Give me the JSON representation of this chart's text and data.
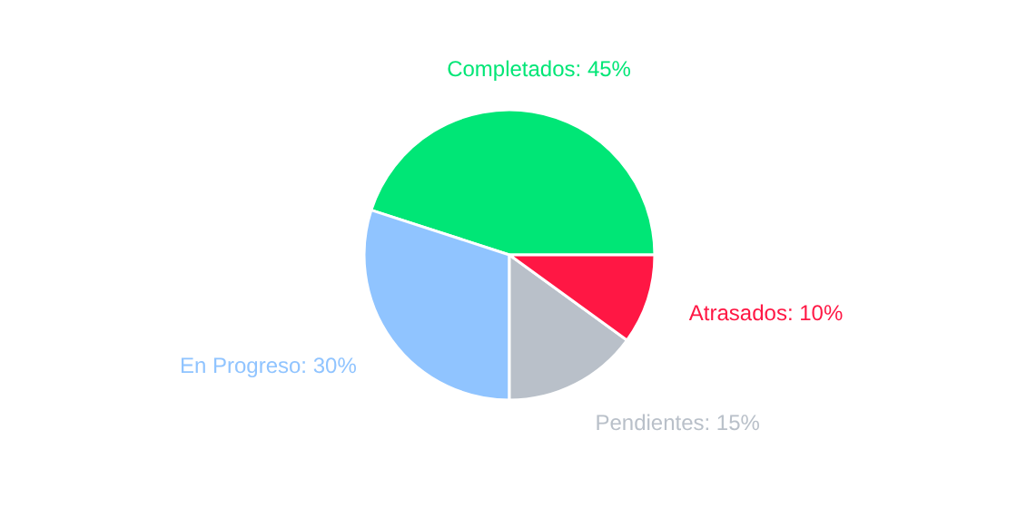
{
  "chart_data": {
    "type": "pie",
    "categories": [
      "Completados: 45%",
      "En Progreso: 30%",
      "Pendientes: 15%",
      "Atrasados: 10%"
    ],
    "values": [
      45,
      30,
      15,
      10
    ],
    "colors": [
      "#00e676",
      "#90c4ff",
      "#b9c0c9",
      "#ff1744"
    ]
  }
}
